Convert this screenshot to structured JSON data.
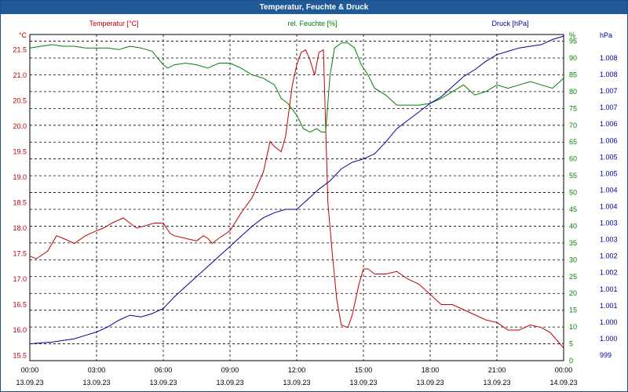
{
  "window": {
    "title": "Temperatur, Feuchte & Druck"
  },
  "colors": {
    "temperature": "#c00000",
    "humidity": "#008000",
    "pressure": "#00009c",
    "titlebar": "#1f5a96",
    "grid": "#000000"
  },
  "legend": {
    "temperature": "Temperatur [°C]",
    "humidity": "rel. Feuchte [%]",
    "pressure": "Druck [hPa]"
  },
  "axis_units": {
    "left": "°C",
    "right1": "%",
    "right2": "hPa"
  },
  "chart_data": {
    "type": "line",
    "title": "Temperatur, Feuchte & Druck",
    "grid": true,
    "x": {
      "range_hours": [
        0,
        24
      ],
      "tick_hours": [
        0,
        3,
        6,
        9,
        12,
        15,
        18,
        21,
        24
      ],
      "tick_labels_time": [
        "00:00",
        "03:00",
        "06:00",
        "09:00",
        "12:00",
        "15:00",
        "18:00",
        "21:00",
        "00:00"
      ],
      "tick_labels_date": [
        "13.09.23",
        "13.09.23",
        "13.09.23",
        "13.09.23",
        "13.09.23",
        "13.09.23",
        "13.09.23",
        "13.09.23",
        "14.09.23"
      ]
    },
    "y_left": {
      "ylim": [
        15.4,
        21.8
      ],
      "ticks": [
        15.5,
        16.0,
        16.5,
        17.0,
        17.5,
        18.0,
        18.5,
        19.0,
        19.5,
        20.0,
        20.5,
        21.0,
        21.5
      ],
      "tick_labels": [
        "15.5",
        "16.0",
        "16.5",
        "17.0",
        "17.5",
        "18.0",
        "18.5",
        "19.0",
        "19.5",
        "20.0",
        "20.5",
        "21.0",
        "21.5"
      ]
    },
    "y_right_humidity": {
      "ylim": [
        0,
        97
      ],
      "ticks": [
        0,
        5,
        10,
        15,
        20,
        25,
        30,
        35,
        40,
        45,
        50,
        55,
        60,
        65,
        70,
        75,
        80,
        85,
        90,
        95
      ],
      "tick_labels": [
        "0",
        "5",
        "10",
        "15",
        "20",
        "25",
        "30",
        "35",
        "40",
        "45",
        "50",
        "55",
        "60",
        "65",
        "70",
        "75",
        "80",
        "85",
        "90",
        "95"
      ]
    },
    "y_right_pressure": {
      "tick_labels": [
        "999",
        "1.000",
        "1.000",
        "1.001",
        "1.001",
        "1.002",
        "1.002",
        "1.003",
        "1.003",
        "1.004",
        "1.004",
        "1.005",
        "1.005",
        "1.006",
        "1.006",
        "1.007",
        "1.007",
        "1.008",
        "1.008"
      ]
    },
    "series": [
      {
        "name": "Temperatur [°C]",
        "axis": "left",
        "x": [
          0.0,
          0.3,
          0.8,
          1.2,
          1.5,
          2.0,
          2.5,
          3.0,
          3.3,
          3.7,
          4.2,
          4.5,
          4.8,
          5.2,
          5.6,
          6.0,
          6.3,
          6.5,
          7.0,
          7.5,
          7.8,
          8.0,
          8.2,
          8.5,
          9.0,
          9.5,
          10.0,
          10.5,
          10.8,
          11.0,
          11.3,
          11.5,
          11.8,
          12.0,
          12.2,
          12.4,
          12.6,
          12.8,
          13.0,
          13.2,
          13.4,
          13.6,
          13.8,
          14.0,
          14.3,
          14.5,
          14.8,
          15.0,
          15.2,
          15.5,
          16.0,
          16.5,
          17.0,
          17.5,
          18.0,
          18.5,
          19.0,
          19.5,
          20.0,
          20.5,
          21.0,
          21.5,
          22.0,
          22.5,
          23.0,
          23.4,
          23.7,
          24.0
        ],
        "values": [
          17.45,
          17.4,
          17.55,
          17.85,
          17.8,
          17.7,
          17.85,
          17.95,
          18.0,
          18.1,
          18.2,
          18.1,
          18.0,
          18.05,
          18.1,
          18.1,
          17.9,
          17.85,
          17.8,
          17.75,
          17.85,
          17.8,
          17.7,
          17.8,
          17.95,
          18.3,
          18.6,
          19.1,
          19.7,
          19.6,
          19.5,
          19.8,
          20.8,
          21.2,
          21.45,
          21.5,
          21.3,
          21.0,
          21.45,
          21.5,
          18.5,
          17.5,
          16.6,
          16.1,
          16.05,
          16.3,
          16.9,
          17.2,
          17.2,
          17.1,
          17.1,
          17.15,
          17.0,
          16.9,
          16.7,
          16.5,
          16.5,
          16.4,
          16.3,
          16.2,
          16.15,
          16.0,
          16.0,
          16.1,
          16.05,
          15.95,
          15.8,
          15.65
        ]
      },
      {
        "name": "rel. Feuchte [%]",
        "axis": "right_humidity",
        "x": [
          0.0,
          0.5,
          1.0,
          1.5,
          2.0,
          2.5,
          3.0,
          3.5,
          4.0,
          4.5,
          5.0,
          5.5,
          6.0,
          6.2,
          6.5,
          7.0,
          7.5,
          8.0,
          8.5,
          9.0,
          9.5,
          10.0,
          10.5,
          11.0,
          11.3,
          11.6,
          12.0,
          12.3,
          12.6,
          12.9,
          13.1,
          13.3,
          13.5,
          13.7,
          14.0,
          14.3,
          14.6,
          14.9,
          15.2,
          15.5,
          16.0,
          16.5,
          17.0,
          17.5,
          18.0,
          18.5,
          19.0,
          19.5,
          20.0,
          20.5,
          21.0,
          21.5,
          22.0,
          22.5,
          23.0,
          23.5,
          24.0
        ],
        "values": [
          93,
          93.5,
          94,
          93.5,
          93.5,
          93,
          93,
          93,
          92.5,
          93.5,
          93,
          92,
          88,
          87,
          88,
          88.5,
          88,
          87,
          88.5,
          88.5,
          87,
          85,
          84,
          82,
          78,
          76.5,
          73,
          69,
          68,
          69,
          68,
          68,
          85,
          93,
          94.5,
          94.5,
          93,
          88,
          85,
          81,
          79,
          76,
          76,
          76,
          76.5,
          78,
          80,
          82,
          79,
          80,
          82,
          81,
          82,
          83,
          82,
          81,
          84
        ]
      },
      {
        "name": "Druck [hPa]",
        "axis": "right_humidity",
        "x": [
          0.0,
          0.5,
          1.0,
          1.5,
          2.0,
          2.5,
          3.0,
          3.5,
          4.0,
          4.5,
          5.0,
          5.5,
          6.0,
          6.5,
          7.0,
          7.5,
          8.0,
          8.5,
          9.0,
          9.5,
          10.0,
          10.5,
          11.0,
          11.5,
          12.0,
          12.5,
          13.0,
          13.5,
          14.0,
          14.5,
          15.0,
          15.5,
          16.0,
          16.5,
          17.0,
          17.5,
          18.0,
          18.5,
          19.0,
          19.5,
          20.0,
          20.5,
          21.0,
          21.5,
          22.0,
          22.5,
          23.0,
          23.5,
          24.0
        ],
        "values": [
          5,
          5.3,
          5.5,
          6,
          6.5,
          7.5,
          8.5,
          10,
          12,
          13.5,
          13,
          14,
          15.5,
          19,
          22,
          25,
          28,
          31,
          34,
          37,
          40,
          42.5,
          44,
          45,
          45,
          48,
          51,
          53.5,
          57,
          59,
          60,
          61.5,
          65,
          69,
          71.5,
          74,
          76.5,
          78.5,
          81.5,
          84.5,
          86.5,
          89,
          91,
          92,
          93,
          93.5,
          94,
          95.5,
          96.5
        ]
      }
    ]
  }
}
